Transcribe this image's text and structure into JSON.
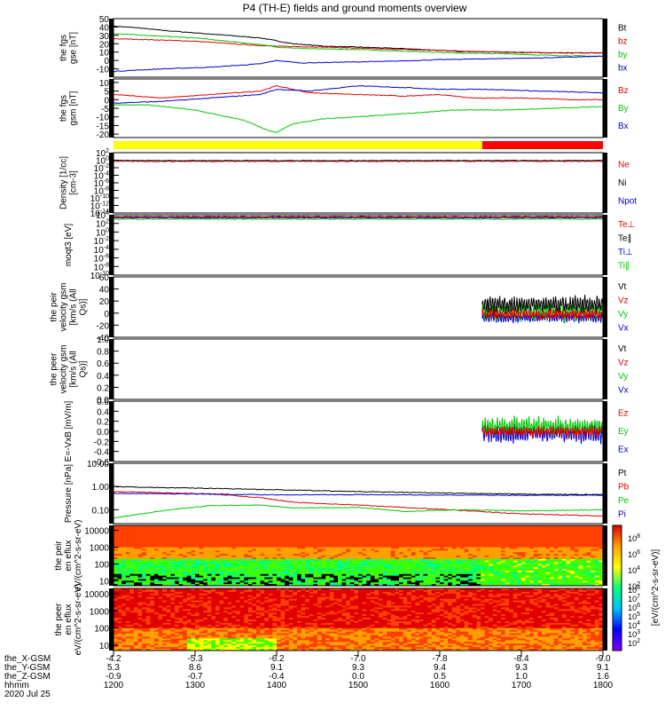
{
  "title": "P4 (TH-E) fields and ground moments overview",
  "colors": {
    "black": "#000000",
    "red": "#e00000",
    "green": "#00c800",
    "blue": "#0000d0",
    "yellow": "#ffff00",
    "bar_red": "#ff0000"
  },
  "chart_data": [
    {
      "type": "line",
      "ylabel": "the fgs gse [nT]",
      "ylim": [
        -20,
        50
      ],
      "yticks": [
        "50",
        "40",
        "30",
        "20",
        "10",
        "0",
        "-10"
      ],
      "tick_values": [
        50,
        40,
        30,
        20,
        10,
        0,
        -10
      ],
      "legend": [
        {
          "label": "Bt",
          "color": "#000000"
        },
        {
          "label": "bz",
          "color": "#e00000"
        },
        {
          "label": "by",
          "color": "#00c800"
        },
        {
          "label": "bx",
          "color": "#0000d0"
        }
      ],
      "series": [
        {
          "name": "Bt",
          "color": "#000000",
          "x": [
            1200,
            1230,
            1260,
            1300,
            1340,
            1380,
            1420,
            1460,
            1500,
            1560,
            1620,
            1680,
            1740,
            1800
          ],
          "y": [
            41,
            39,
            36,
            33,
            30,
            27,
            20,
            17,
            16,
            14,
            11,
            10,
            9,
            9
          ]
        },
        {
          "name": "bz",
          "color": "#e00000",
          "x": [
            1200,
            1240,
            1300,
            1360,
            1400,
            1460,
            1520,
            1600,
            1680,
            1740,
            1800
          ],
          "y": [
            26,
            25,
            23,
            19,
            17,
            16,
            14,
            12,
            10,
            9,
            9
          ]
        },
        {
          "name": "by",
          "color": "#00c800",
          "x": [
            1200,
            1240,
            1300,
            1340,
            1380,
            1400,
            1440,
            1500,
            1560,
            1620,
            1680,
            1740,
            1800
          ],
          "y": [
            32,
            30,
            27,
            23,
            19,
            16,
            14,
            13,
            11,
            9,
            8,
            6,
            5
          ]
        },
        {
          "name": "bx",
          "color": "#0000d0",
          "x": [
            1200,
            1260,
            1320,
            1380,
            1400,
            1430,
            1480,
            1540,
            1600,
            1660,
            1720,
            1800
          ],
          "y": [
            -13,
            -10,
            -8,
            -4,
            0,
            -3,
            -2,
            -1,
            1,
            2,
            3,
            5
          ]
        }
      ]
    },
    {
      "type": "line",
      "ylabel": "the fgs gsm [nT]",
      "ylim": [
        -22,
        12
      ],
      "yticks": [
        "10",
        "5",
        "0",
        "-5",
        "-10",
        "-15",
        "-20"
      ],
      "tick_values": [
        10,
        5,
        0,
        -5,
        -10,
        -15,
        -20
      ],
      "legend": [
        {
          "label": "Bz",
          "color": "#e00000"
        },
        {
          "label": "By",
          "color": "#00c800"
        },
        {
          "label": "Bx",
          "color": "#0000d0"
        }
      ],
      "series": [
        {
          "name": "Bz",
          "color": "#e00000",
          "x": [
            1200,
            1260,
            1320,
            1380,
            1400,
            1440,
            1500,
            1560,
            1600,
            1640,
            1700,
            1760,
            1800
          ],
          "y": [
            3,
            1,
            3,
            5,
            8,
            4,
            3,
            2,
            3,
            1,
            1,
            0,
            0
          ]
        },
        {
          "name": "By",
          "color": "#00c800",
          "x": [
            1200,
            1240,
            1300,
            1360,
            1390,
            1400,
            1420,
            1460,
            1500,
            1560,
            1620,
            1680,
            1740,
            1800
          ],
          "y": [
            -3,
            -3,
            -6,
            -12,
            -18,
            -19,
            -14,
            -11,
            -10,
            -8,
            -6,
            -6,
            -5,
            -4
          ]
        },
        {
          "name": "Bx",
          "color": "#0000d0",
          "x": [
            1200,
            1260,
            1320,
            1380,
            1400,
            1440,
            1500,
            1560,
            1600,
            1660,
            1720,
            1800
          ],
          "y": [
            -2,
            -1,
            1,
            3,
            6,
            5,
            8,
            7,
            6,
            6,
            5,
            4
          ]
        }
      ]
    },
    {
      "type": "line",
      "ylabel": "Density [1/cc] [cm-3]",
      "scale": "log",
      "ylim": [
        -14,
        2
      ],
      "yticks": [
        "10^2",
        "10^0",
        "10^-2",
        "10^-4",
        "10^-6",
        "10^-8",
        "10^-10",
        "10^-12",
        "10^-14"
      ],
      "tick_values": [
        2,
        0,
        -2,
        -4,
        -6,
        -8,
        -10,
        -12,
        -14
      ],
      "legend": [
        {
          "label": "Ne",
          "color": "#e00000"
        },
        {
          "label": "Ni",
          "color": "#000000"
        },
        {
          "label": "Npot",
          "color": "#0000d0"
        }
      ],
      "series": [
        {
          "name": "Ne",
          "color": "#e00000",
          "x": [
            1200,
            1800
          ],
          "y": [
            -0.3,
            -0.3
          ]
        },
        {
          "name": "Ni",
          "color": "#000000",
          "x": [
            1200,
            1800
          ],
          "y": [
            -0.1,
            -0.1
          ]
        }
      ]
    },
    {
      "type": "line",
      "ylabel": "moqt3 [eV]",
      "scale": "log",
      "ylim": [
        -10,
        4
      ],
      "yticks": [
        "10^4",
        "10^2",
        "10^0",
        "10^-2",
        "10^-4",
        "10^-6",
        "10^-8",
        "10^-10"
      ],
      "tick_values": [
        4,
        2,
        0,
        -2,
        -4,
        -6,
        -8,
        -10
      ],
      "legend": [
        {
          "label": "Te⊥",
          "color": "#e00000"
        },
        {
          "label": "Te∥",
          "color": "#000000"
        },
        {
          "label": "Ti⊥",
          "color": "#0000d0"
        },
        {
          "label": "Ti∥",
          "color": "#00c800"
        }
      ],
      "series": [
        {
          "name": "Ti∥",
          "color": "#00c800",
          "x": [
            1200,
            1800
          ],
          "y": [
            3.0,
            3.0
          ]
        },
        {
          "name": "Ti⊥",
          "color": "#0000d0",
          "x": [
            1200,
            1800
          ],
          "y": [
            3.3,
            3.3
          ]
        },
        {
          "name": "Te∥",
          "color": "#000000",
          "x": [
            1200,
            1800
          ],
          "y": [
            3.6,
            3.6
          ]
        },
        {
          "name": "Te⊥",
          "color": "#e00000",
          "x": [
            1200,
            1800
          ],
          "y": [
            3.5,
            3.5
          ]
        }
      ]
    },
    {
      "type": "line",
      "ylabel": "the peir velocity gsm [km/s (All Qs)]",
      "ylim": [
        -40,
        60
      ],
      "yticks": [
        "60",
        "40",
        "20",
        "0",
        "-20",
        "-40"
      ],
      "tick_values": [
        60,
        40,
        20,
        0,
        -20,
        -40
      ],
      "legend": [
        {
          "label": "Vt",
          "color": "#000000"
        },
        {
          "label": "Vz",
          "color": "#e00000"
        },
        {
          "label": "Vy",
          "color": "#00c800"
        },
        {
          "label": "Vx",
          "color": "#0000d0"
        }
      ],
      "data_start": 1652,
      "bands": [
        {
          "name": "Vx",
          "color": "#0000d0",
          "center": -8,
          "amp": 5
        },
        {
          "name": "Vy",
          "color": "#00c800",
          "center": 2,
          "amp": 10
        },
        {
          "name": "Vt",
          "color": "#000000",
          "center": 14,
          "amp": 9
        },
        {
          "name": "Vz",
          "color": "#e00000",
          "center": -2,
          "amp": 6
        }
      ]
    },
    {
      "type": "line",
      "ylabel": "the peer velocity gsm [km/s (All Qs)]",
      "ylim": [
        0,
        1
      ],
      "yticks": [
        "1.0",
        "0.8",
        "0.6",
        "0.4",
        "0.2",
        "0.0"
      ],
      "tick_values": [
        1.0,
        0.8,
        0.6,
        0.4,
        0.2,
        0.0
      ],
      "legend": [
        {
          "label": "Vt",
          "color": "#000000"
        },
        {
          "label": "Vz",
          "color": "#e00000"
        },
        {
          "label": "Vy",
          "color": "#00c800"
        },
        {
          "label": "Vx",
          "color": "#0000d0"
        }
      ]
    },
    {
      "type": "line",
      "ylabel": "E=-VxB [mV/m]",
      "ylim": [
        -0.6,
        0.6
      ],
      "yticks": [
        "0.6",
        "0.4",
        "0.2",
        "0.0",
        "-0.2",
        "-0.4",
        "-0.6"
      ],
      "tick_values": [
        0.6,
        0.4,
        0.2,
        0.0,
        -0.2,
        -0.4,
        -0.6
      ],
      "legend": [
        {
          "label": "Ez",
          "color": "#e00000"
        },
        {
          "label": "Ey",
          "color": "#00c800"
        },
        {
          "label": "Ex",
          "color": "#0000d0"
        }
      ],
      "data_start": 1652,
      "bands": [
        {
          "name": "Ex",
          "color": "#0000d0",
          "center": -0.05,
          "amp": 0.12
        },
        {
          "name": "Ey",
          "color": "#00c800",
          "center": 0.1,
          "amp": 0.12
        },
        {
          "name": "Ez",
          "color": "#e00000",
          "center": 0.0,
          "amp": 0.07
        }
      ]
    },
    {
      "type": "line",
      "ylabel": "Pressure [nPa]",
      "scale": "log",
      "ylim": [
        -1.6,
        1.0
      ],
      "yticks": [
        "10.00",
        "1.00",
        "0.10"
      ],
      "tick_values": [
        1.0,
        0.0,
        -1.0
      ],
      "legend": [
        {
          "label": "Pt",
          "color": "#000000"
        },
        {
          "label": "Pb",
          "color": "#e00000"
        },
        {
          "label": "Pe",
          "color": "#00c800"
        },
        {
          "label": "Pi",
          "color": "#0000d0"
        }
      ],
      "series": [
        {
          "name": "Pt",
          "color": "#000000",
          "x": [
            1200,
            1260,
            1320,
            1400,
            1500,
            1600,
            1700,
            1800
          ],
          "y": [
            0.0,
            -0.05,
            -0.08,
            -0.14,
            -0.22,
            -0.28,
            -0.33,
            -0.35
          ]
        },
        {
          "name": "Pb",
          "color": "#e00000",
          "x": [
            1200,
            1260,
            1320,
            1380,
            1420,
            1500,
            1600,
            1700,
            1800
          ],
          "y": [
            -0.22,
            -0.27,
            -0.32,
            -0.48,
            -0.68,
            -0.8,
            -0.98,
            -1.18,
            -1.27
          ]
        },
        {
          "name": "Pe",
          "color": "#00c800",
          "x": [
            1200,
            1230,
            1270,
            1320,
            1380,
            1420,
            1500,
            1560,
            1620,
            1700,
            1800
          ],
          "y": [
            -1.35,
            -1.2,
            -1.0,
            -0.82,
            -0.8,
            -0.92,
            -0.9,
            -1.08,
            -1.0,
            -1.05,
            -1.0
          ]
        },
        {
          "name": "Pi",
          "color": "#0000d0",
          "x": [
            1200,
            1300,
            1400,
            1500,
            1600,
            1700,
            1800
          ],
          "y": [
            -0.3,
            -0.32,
            -0.36,
            -0.35,
            -0.37,
            -0.38,
            -0.37
          ]
        }
      ]
    },
    {
      "type": "heatmap",
      "ylabel": "the peir en eflux eV/(cm^2-s-sr-eV)",
      "scale": "log",
      "ylim": [
        0.7,
        4.3
      ],
      "yticks": [
        "10000",
        "1000",
        "100",
        "10"
      ],
      "tick_values": [
        4,
        3,
        2,
        1
      ]
    },
    {
      "type": "heatmap",
      "ylabel": "the peer en eflux eV/(cm^2-s-sr-eV)",
      "scale": "log",
      "ylim": [
        0.7,
        4.3
      ],
      "yticks": [
        "10000",
        "1000",
        "100",
        "10"
      ],
      "tick_values": [
        4,
        3,
        2,
        1
      ]
    }
  ],
  "colorbar": {
    "label": "[eV/(cm^2-s-sr-eV)]",
    "ticks": [
      "10^8",
      "10^6",
      "10^4",
      "10^2"
    ],
    "ticks2": [
      "10^8",
      "10^7",
      "10^6",
      "10^5",
      "10^4",
      "10^3",
      "10^2"
    ]
  },
  "status_bar": [
    {
      "from": 1200,
      "to": 1652,
      "color": "#ffff00"
    },
    {
      "from": 1652,
      "to": 1800,
      "color": "#ff0000"
    }
  ],
  "x_axis": {
    "xlim": [
      1200,
      1800
    ],
    "row_labels": [
      "the_X-GSM",
      "the_Y-GSM",
      "the_Z-GSM",
      "hhmm",
      "2020 Jul 25"
    ],
    "columns": [
      {
        "x": 1200,
        "vals": [
          "-4.2",
          "5.3",
          "-0.9",
          "1200"
        ]
      },
      {
        "x": 1300,
        "vals": [
          "-5.3",
          "8.6",
          "-0.7",
          "1300"
        ]
      },
      {
        "x": 1400,
        "vals": [
          "-6.2",
          "9.1",
          "-0.4",
          "1400"
        ]
      },
      {
        "x": 1500,
        "vals": [
          "-7.0",
          "9.3",
          "0.0",
          "1500"
        ]
      },
      {
        "x": 1600,
        "vals": [
          "-7.8",
          "9.4",
          "0.5",
          "1600"
        ]
      },
      {
        "x": 1700,
        "vals": [
          "-8.4",
          "9.3",
          "1.0",
          "1700"
        ]
      },
      {
        "x": 1800,
        "vals": [
          "-9.0",
          "9.1",
          "1.6",
          "1800"
        ]
      }
    ]
  }
}
